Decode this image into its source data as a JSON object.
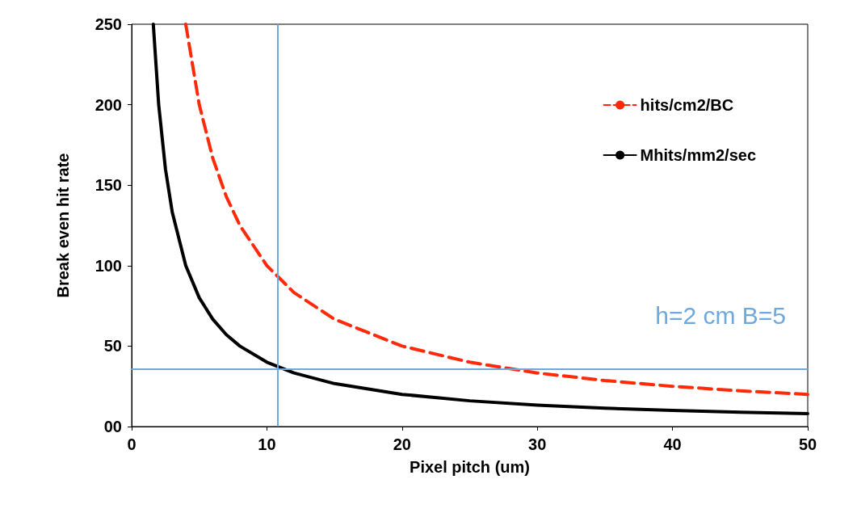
{
  "chart_data": {
    "type": "line",
    "xlabel": "Pixel pitch (um)",
    "ylabel": "Break even hit rate",
    "xlim": [
      0,
      50
    ],
    "xticks": [
      0,
      10,
      20,
      30,
      40,
      50
    ],
    "ylim": [
      0,
      250
    ],
    "yticks": [
      {
        "value": 0,
        "label": "00"
      },
      50,
      100,
      150,
      200,
      250
    ],
    "grid": false,
    "legend": "top right",
    "marker": "none",
    "series": [
      {
        "name": "hits/cm2/BC",
        "color": "#ff2a0a",
        "line_style": "dashed",
        "x": [
          4,
          5,
          6,
          7,
          8,
          10,
          12,
          15,
          20,
          25,
          30,
          35,
          40,
          45,
          50
        ],
        "values": [
          250,
          200,
          166.7,
          142.9,
          125,
          100,
          83.3,
          66.7,
          50,
          40,
          33.3,
          28.6,
          25,
          22.2,
          20
        ]
      },
      {
        "name": "Mhits/mm2/sec",
        "color": "#000000",
        "line_style": "solid",
        "x": [
          1.6,
          2,
          2.5,
          3,
          4,
          5,
          6,
          7,
          8,
          10,
          12,
          15,
          20,
          25,
          30,
          35,
          40,
          45,
          50
        ],
        "values": [
          250,
          200,
          160,
          133.3,
          100,
          80,
          66.7,
          57.1,
          50,
          40,
          33.3,
          26.7,
          20,
          16,
          13.3,
          11.4,
          10,
          8.9,
          8
        ]
      }
    ],
    "ref_lines": [
      {
        "axis": "x",
        "value": 10.8,
        "color": "#6fa8dc"
      },
      {
        "axis": "y",
        "value": 36,
        "color": "#6fa8dc"
      }
    ],
    "annotations": [
      "h=2 cm B=5"
    ]
  }
}
